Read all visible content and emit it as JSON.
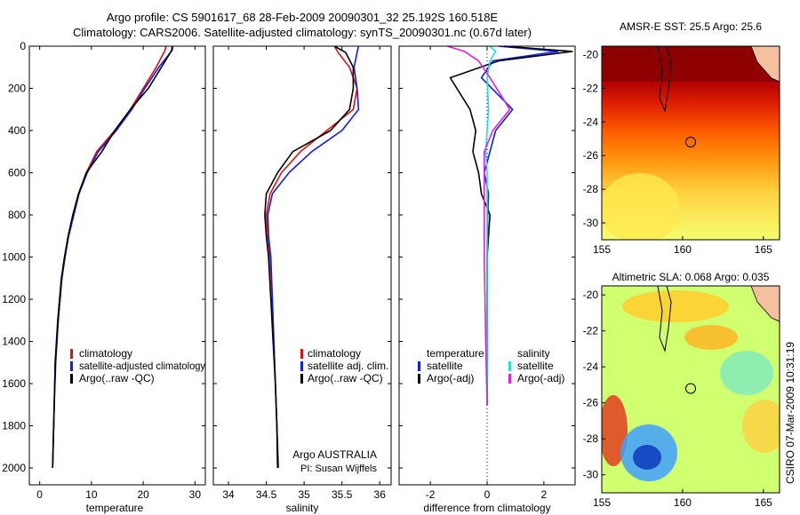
{
  "header": {
    "line1": "Argo profile: CS 5901617_68 28-Feb-2009 20090301_32 25.192S 160.518E",
    "line2": "Climatology: CARS2006. Satellite-adjusted climatology: synTS_20090301.nc (0.67d later)"
  },
  "side_label": "CSIRO 07-Mar-2009 10:31:19",
  "colors": {
    "climatology": "#e01010",
    "satellite": "#1020e0",
    "argo": "#000000",
    "sal_satellite": "#20e0e0",
    "sal_argo": "#e020e0"
  },
  "chart_data": [
    {
      "id": "temperature",
      "type": "line",
      "xlabel": "temperature",
      "xlim": [
        -2,
        32
      ],
      "ylim": [
        0,
        2080
      ],
      "y_inverted": true,
      "xticks": [
        0,
        10,
        20,
        30
      ],
      "xtick_labels": [
        "0",
        "10",
        "20",
        "30"
      ],
      "yticks": [
        0,
        200,
        400,
        600,
        800,
        1000,
        1200,
        1400,
        1600,
        1800,
        2000
      ],
      "ytick_labels": [
        "0",
        "200",
        "400",
        "600",
        "800",
        "1000",
        "1200",
        "1400",
        "1600",
        "1800",
        "2000"
      ],
      "legend": {
        "position": "lower-right",
        "entries": [
          "climatology",
          "satellite-adjusted climatology",
          "Argo(..raw -QC)"
        ]
      },
      "series": [
        {
          "name": "climatology",
          "color": "#e01010",
          "x": [
            24.4,
            24.2,
            22.5,
            20.0,
            17.5,
            14.5,
            11.0,
            9.0,
            7.5,
            6.5,
            5.5,
            4.8,
            4.2,
            3.5,
            3.0,
            2.8,
            2.6,
            2.5
          ],
          "y": [
            0,
            20,
            100,
            200,
            300,
            400,
            500,
            600,
            700,
            800,
            900,
            1000,
            1100,
            1300,
            1500,
            1700,
            1900,
            2000
          ]
        },
        {
          "name": "satellite-adjusted climatology",
          "color": "#1020e0",
          "x": [
            25.7,
            25.6,
            23.0,
            20.3,
            17.8,
            14.8,
            11.3,
            9.2,
            7.6,
            6.6,
            5.6,
            4.9,
            4.3,
            3.6,
            3.1,
            2.8,
            2.6,
            2.5
          ],
          "y": [
            0,
            20,
            100,
            200,
            300,
            400,
            500,
            600,
            700,
            800,
            900,
            1000,
            1100,
            1300,
            1500,
            1700,
            1900,
            2000
          ]
        },
        {
          "name": "Argo(..raw -QC)",
          "color": "#000000",
          "x": [
            25.6,
            25.5,
            23.5,
            21.0,
            17.5,
            14.5,
            12.0,
            9.0,
            7.5,
            6.4,
            5.5,
            4.8,
            4.2,
            3.5,
            3.0,
            2.8,
            2.6,
            2.5
          ],
          "y": [
            0,
            20,
            100,
            200,
            300,
            400,
            500,
            600,
            700,
            800,
            900,
            1000,
            1100,
            1300,
            1500,
            1700,
            1900,
            2000
          ]
        }
      ]
    },
    {
      "id": "salinity",
      "type": "line",
      "xlabel": "salinity",
      "xlim": [
        33.8,
        36.15
      ],
      "ylim": [
        0,
        2080
      ],
      "y_inverted": true,
      "xticks": [
        34,
        34.5,
        35,
        35.5,
        36
      ],
      "xtick_labels": [
        "34",
        "34.5",
        "35",
        "35.5",
        "36"
      ],
      "legend": {
        "position": "lower-right",
        "entries": [
          "climatology",
          "satellite adj. clim.",
          "Argo(..raw -QC)"
        ]
      },
      "annotation_lines": [
        "Argo AUSTRALIA",
        "PI: Susan Wijffels"
      ],
      "series": [
        {
          "name": "climatology",
          "color": "#e01010",
          "x": [
            35.4,
            35.45,
            35.6,
            35.7,
            35.65,
            35.3,
            34.95,
            34.7,
            34.55,
            34.5,
            34.52,
            34.55,
            34.58,
            34.6,
            34.62,
            34.64,
            34.65
          ],
          "y": [
            0,
            30,
            100,
            200,
            300,
            400,
            500,
            600,
            700,
            800,
            900,
            1000,
            1200,
            1400,
            1600,
            1800,
            2000
          ]
        },
        {
          "name": "satellite adj. clim.",
          "color": "#1020e0",
          "x": [
            35.72,
            35.7,
            35.66,
            35.7,
            35.72,
            35.5,
            35.1,
            34.8,
            34.58,
            34.52,
            34.53,
            34.56,
            34.58,
            34.6,
            34.62,
            34.64,
            34.66
          ],
          "y": [
            0,
            30,
            100,
            200,
            300,
            400,
            500,
            600,
            700,
            800,
            900,
            1000,
            1200,
            1400,
            1600,
            1800,
            2000
          ]
        },
        {
          "name": "Argo(..raw -QC)",
          "color": "#000000",
          "x": [
            35.4,
            35.55,
            35.65,
            35.65,
            35.6,
            35.35,
            34.85,
            34.65,
            34.5,
            34.48,
            34.5,
            34.53,
            34.56,
            34.59,
            34.62,
            34.64,
            34.65
          ],
          "y": [
            0,
            30,
            100,
            200,
            300,
            400,
            500,
            600,
            700,
            800,
            900,
            1000,
            1200,
            1400,
            1600,
            1800,
            2000
          ]
        }
      ]
    },
    {
      "id": "difference",
      "type": "line",
      "xlabel": "difference from climatology",
      "xlim": [
        -3.1,
        3.1
      ],
      "ylim": [
        0,
        2080
      ],
      "y_inverted": true,
      "xticks": [
        -2,
        0,
        2
      ],
      "xtick_labels": [
        "-2",
        "0",
        "2"
      ],
      "zero_line": true,
      "legend": {
        "position": "lower-right",
        "headers": [
          "temperature",
          "salinity"
        ],
        "entries": [
          [
            "satellite",
            "satellite"
          ],
          [
            "Argo(-adj)",
            "Argo(-adj)"
          ]
        ]
      },
      "series": [
        {
          "name": "temperature satellite",
          "color": "#1020e0",
          "x": [
            0.4,
            2.5,
            0.2,
            -0.2,
            0.9,
            0.3,
            0.1,
            -0.1,
            0.05,
            0.02,
            0.0,
            0.0,
            0.0,
            0.0
          ],
          "y": [
            0,
            25,
            70,
            150,
            300,
            400,
            500,
            600,
            700,
            800,
            1000,
            1300,
            1600,
            1700
          ]
        },
        {
          "name": "temperature Argo(-adj)",
          "color": "#000000",
          "x": [
            0.6,
            3.0,
            0.4,
            -1.3,
            -0.6,
            -0.4,
            -0.5,
            -0.3,
            -0.2,
            0.1,
            0.0,
            0.0,
            0.0,
            0.0
          ],
          "y": [
            0,
            25,
            70,
            150,
            300,
            400,
            500,
            600,
            700,
            800,
            1000,
            1300,
            1600,
            1700
          ]
        },
        {
          "name": "salinity satellite",
          "color": "#20e0e0",
          "x": [
            0.1,
            0.3,
            0.1,
            0.0,
            0.05,
            0.0,
            -0.05,
            0.0,
            0.0,
            0.0,
            0.0,
            0.0
          ],
          "y": [
            0,
            25,
            70,
            150,
            300,
            400,
            500,
            600,
            800,
            1000,
            1400,
            1700
          ]
        },
        {
          "name": "salinity Argo(-adj)",
          "color": "#e020e0",
          "x": [
            -1.4,
            -0.8,
            -0.3,
            0.1,
            0.8,
            0.2,
            -0.1,
            -0.1,
            -0.1,
            -0.1,
            -0.05,
            0.0
          ],
          "y": [
            0,
            25,
            70,
            150,
            300,
            400,
            500,
            600,
            800,
            1000,
            1400,
            1700
          ]
        }
      ]
    }
  ],
  "maps": [
    {
      "id": "sst",
      "title": "AMSR-E SST: 25.5 Argo: 25.6",
      "xticks": [
        155,
        160,
        165
      ],
      "yticks": [
        -20,
        -22,
        -24,
        -26,
        -28,
        -30
      ],
      "xlim": [
        155,
        166
      ],
      "ylim": [
        -31,
        -19.5
      ],
      "float_position": [
        160.5,
        -25.2
      ]
    },
    {
      "id": "sla",
      "title": "Altimetric SLA: 0.068 Argo: 0.035",
      "xticks": [
        155,
        160,
        165
      ],
      "yticks": [
        -20,
        -22,
        -24,
        -26,
        -28,
        -30
      ],
      "xlim": [
        155,
        166
      ],
      "ylim": [
        -31,
        -19.5
      ],
      "float_position": [
        160.5,
        -25.2
      ]
    }
  ]
}
